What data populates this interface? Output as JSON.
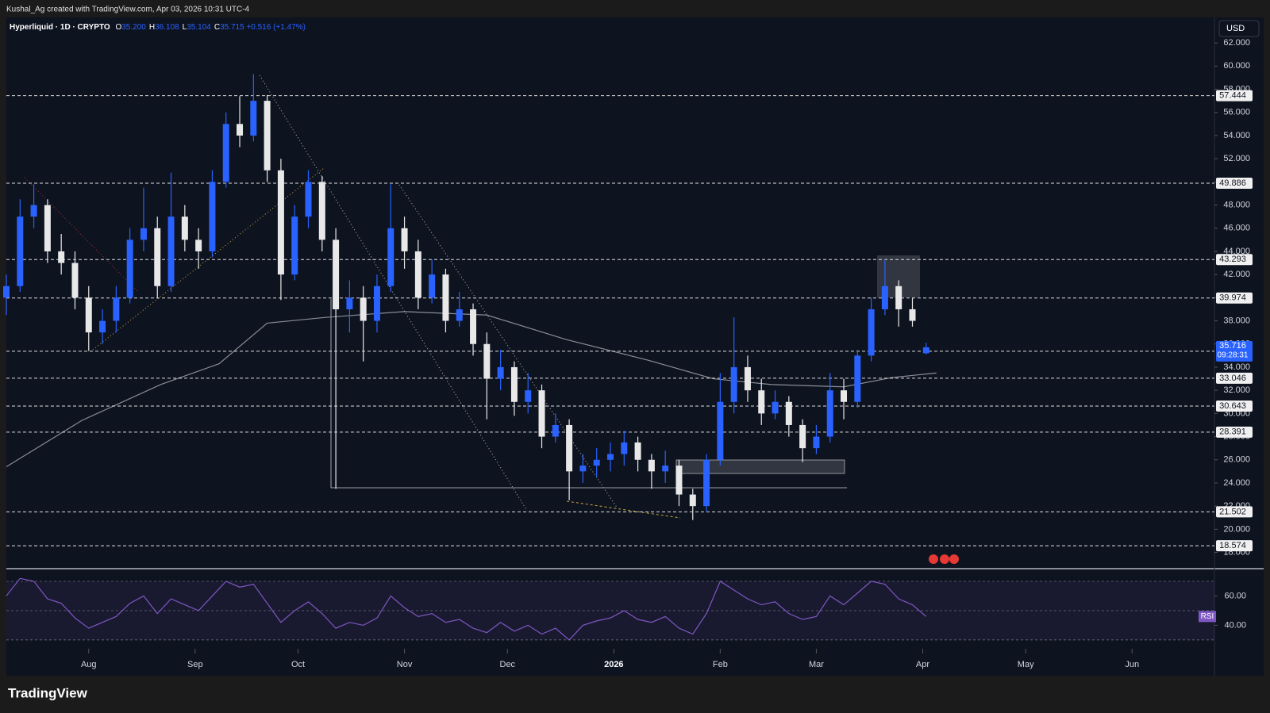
{
  "header": {
    "attribution": "Kushal_Ag created with TradingView.com, Apr 03, 2026 10:31 UTC-4",
    "brand": "TradingView",
    "currency": "USD"
  },
  "chart_data": [
    {
      "type": "candlestick",
      "title": "Hyperliquid · 1D · CRYPTO",
      "legend_ohlc": [
        {
          "key": "O",
          "value": "35.200"
        },
        {
          "key": "H",
          "value": "36.108"
        },
        {
          "key": "L",
          "value": "35.104"
        },
        {
          "key": "C",
          "value": "35.715"
        }
      ],
      "change": "+0.516 (+1.47%)",
      "x": [
        -24,
        -20,
        -16,
        -12,
        -8,
        -4,
        0,
        4,
        8,
        12,
        16,
        20,
        24,
        28,
        32,
        36,
        40,
        44,
        48,
        52,
        56,
        60,
        64,
        68,
        72,
        76,
        80,
        84,
        88,
        92,
        96,
        100,
        104,
        108,
        112,
        116,
        120,
        124,
        128,
        132,
        136,
        140,
        144,
        148,
        152,
        156,
        160,
        164,
        168,
        172,
        176,
        180,
        184,
        188,
        192,
        196,
        200,
        204,
        208,
        212,
        216,
        220,
        224,
        228,
        232,
        236,
        240,
        244
      ],
      "ohlc": [
        [
          40,
          42,
          38.5,
          41
        ],
        [
          41,
          48.5,
          40.5,
          47
        ],
        [
          47,
          49.8,
          46,
          48
        ],
        [
          48,
          48.5,
          43,
          44
        ],
        [
          44,
          45.5,
          42,
          43
        ],
        [
          43,
          44,
          39,
          40
        ],
        [
          40,
          41,
          35.4,
          37
        ],
        [
          37,
          39,
          36,
          38
        ],
        [
          38,
          41,
          37,
          40
        ],
        [
          40,
          46,
          39.5,
          45
        ],
        [
          45,
          49.5,
          44,
          46
        ],
        [
          46,
          47,
          40,
          41
        ],
        [
          41,
          50.8,
          40.5,
          47
        ],
        [
          47,
          48,
          44,
          45
        ],
        [
          45,
          46,
          42.5,
          44
        ],
        [
          44,
          51,
          43.5,
          50
        ],
        [
          50,
          56,
          49.5,
          55
        ],
        [
          55,
          57.4,
          53,
          54
        ],
        [
          54,
          59.3,
          53.5,
          57
        ],
        [
          57,
          57.5,
          50,
          51
        ],
        [
          51,
          52,
          39.8,
          42
        ],
        [
          42,
          48,
          41.5,
          47
        ],
        [
          47,
          51,
          46,
          50
        ],
        [
          50,
          50.5,
          44,
          45
        ],
        [
          45,
          46,
          23.5,
          39
        ],
        [
          39,
          41.5,
          37,
          40
        ],
        [
          40,
          41,
          34.5,
          38
        ],
        [
          38,
          42,
          37,
          41
        ],
        [
          41,
          49.8,
          40.5,
          46
        ],
        [
          46,
          47,
          42.5,
          44
        ],
        [
          44,
          45,
          39,
          40
        ],
        [
          40,
          43.3,
          39.5,
          42
        ],
        [
          42,
          42.5,
          37,
          38
        ],
        [
          38,
          40.5,
          37.5,
          39
        ],
        [
          39,
          39.5,
          35,
          36
        ],
        [
          36,
          37,
          29.5,
          33
        ],
        [
          33,
          35.5,
          32,
          34
        ],
        [
          34,
          34.5,
          29.8,
          31
        ],
        [
          31,
          33.5,
          30,
          32
        ],
        [
          32,
          32.5,
          27,
          28
        ],
        [
          28,
          30,
          27.5,
          29
        ],
        [
          29,
          29.5,
          22.5,
          25
        ],
        [
          25,
          26.5,
          24,
          25.5
        ],
        [
          25.5,
          27,
          24.5,
          26
        ],
        [
          26,
          27.5,
          25,
          26.5
        ],
        [
          26.5,
          28.5,
          25.5,
          27.5
        ],
        [
          27.5,
          28,
          25,
          26
        ],
        [
          26,
          26.5,
          23.5,
          25
        ],
        [
          25,
          26.8,
          24,
          25.5
        ],
        [
          25.5,
          26,
          22,
          23
        ],
        [
          23,
          23.5,
          20.8,
          22
        ],
        [
          22,
          26.5,
          21.5,
          26
        ],
        [
          26,
          33.5,
          25.5,
          31
        ],
        [
          31,
          38.3,
          30,
          34
        ],
        [
          34,
          35,
          31,
          32
        ],
        [
          32,
          33,
          29,
          30
        ],
        [
          30,
          32,
          29.5,
          31
        ],
        [
          31,
          31.5,
          28,
          29
        ],
        [
          29,
          29.5,
          25.8,
          27
        ],
        [
          27,
          29,
          26.5,
          28
        ],
        [
          28,
          33.5,
          27.5,
          32
        ],
        [
          32,
          33,
          29.5,
          31
        ],
        [
          31,
          35.5,
          30.5,
          35
        ],
        [
          35,
          40,
          34.5,
          39
        ],
        [
          39,
          43.3,
          38.5,
          41
        ],
        [
          41,
          41.5,
          37.5,
          39
        ],
        [
          39,
          40,
          37.5,
          38
        ],
        [
          35.2,
          36.108,
          35.104,
          35.715
        ]
      ],
      "up_color": "#2962ff",
      "down_color": "#e8e8e8",
      "ma": {
        "x": [
          -24,
          -2,
          21,
          38,
          52,
          69,
          92,
          116,
          139,
          163,
          182,
          199,
          220,
          234,
          247
        ],
        "values": [
          25.4,
          29.4,
          32.5,
          34.3,
          37.8,
          38.3,
          38.8,
          38.5,
          36.4,
          34.6,
          33.0,
          32.5,
          32.3,
          33.1,
          33.5
        ],
        "color": "#8a8d96"
      },
      "levels": [
        57.444,
        49.886,
        43.293,
        39.974,
        35.376,
        33.046,
        30.643,
        28.391,
        21.502,
        18.574
      ],
      "last_price": {
        "value": 35.716,
        "countdown": "09:28:31"
      },
      "xlim": [
        -24,
        328
      ],
      "xticks": [
        {
          "value": 0,
          "label": "Aug"
        },
        {
          "value": 31,
          "label": "Sep"
        },
        {
          "value": 61,
          "label": "Oct"
        },
        {
          "value": 92,
          "label": "Nov"
        },
        {
          "value": 122,
          "label": "Dec"
        },
        {
          "value": 153,
          "label": "2026"
        },
        {
          "value": 184,
          "label": "Feb"
        },
        {
          "value": 212,
          "label": "Mar"
        },
        {
          "value": 243,
          "label": "Apr"
        },
        {
          "value": 273,
          "label": "May"
        },
        {
          "value": 304,
          "label": "Jun"
        }
      ],
      "ylim": [
        16.6,
        64.2
      ],
      "yticks": [
        {
          "value": 18,
          "label": "18.000"
        },
        {
          "value": 20,
          "label": "20.000"
        },
        {
          "value": 22,
          "label": "22.000"
        },
        {
          "value": 24,
          "label": "24.000"
        },
        {
          "value": 26,
          "label": "26.000"
        },
        {
          "value": 28,
          "label": "28.000"
        },
        {
          "value": 30,
          "label": "30.000"
        },
        {
          "value": 32,
          "label": "32.000"
        },
        {
          "value": 34,
          "label": "34.000"
        },
        {
          "value": 36,
          "label": "36.000"
        },
        {
          "value": 38,
          "label": "38.000"
        },
        {
          "value": 40,
          "label": "40.000"
        },
        {
          "value": 42,
          "label": "42.000"
        },
        {
          "value": 44,
          "label": "44.000"
        },
        {
          "value": 46,
          "label": "46.000"
        },
        {
          "value": 48,
          "label": "48.000"
        },
        {
          "value": 50,
          "label": "50.000"
        },
        {
          "value": 52,
          "label": "52.000"
        },
        {
          "value": 54,
          "label": "54.000"
        },
        {
          "value": 56,
          "label": "56.000"
        },
        {
          "value": 58,
          "label": "58.000"
        },
        {
          "value": 60,
          "label": "60.000"
        },
        {
          "value": 62,
          "label": "62.000"
        }
      ]
    },
    {
      "type": "line",
      "name": "RSI",
      "color": "#7e57c2",
      "x": [
        -24,
        -20,
        -16,
        -12,
        -8,
        -4,
        0,
        4,
        8,
        12,
        16,
        20,
        24,
        28,
        32,
        36,
        40,
        44,
        48,
        52,
        56,
        60,
        64,
        68,
        72,
        76,
        80,
        84,
        88,
        92,
        96,
        100,
        104,
        108,
        112,
        116,
        120,
        124,
        128,
        132,
        136,
        140,
        144,
        148,
        152,
        156,
        160,
        164,
        168,
        172,
        176,
        180,
        184,
        188,
        192,
        196,
        200,
        204,
        208,
        212,
        216,
        220,
        224,
        228,
        232,
        236,
        240,
        244
      ],
      "values": [
        60,
        72,
        70,
        58,
        55,
        45,
        38,
        42,
        46,
        55,
        60,
        48,
        58,
        54,
        50,
        60,
        70,
        66,
        68,
        55,
        42,
        50,
        56,
        48,
        38,
        42,
        40,
        45,
        60,
        52,
        46,
        48,
        42,
        44,
        38,
        35,
        42,
        36,
        40,
        34,
        38,
        30,
        40,
        43,
        45,
        50,
        44,
        42,
        46,
        38,
        34,
        48,
        70,
        64,
        58,
        54,
        56,
        48,
        44,
        46,
        60,
        54,
        62,
        70,
        68,
        58,
        54,
        46
      ],
      "bands": [
        70,
        50,
        30
      ],
      "ylim": [
        24,
        77
      ],
      "yticks": [
        {
          "value": 40,
          "label": "40.00"
        },
        {
          "value": 60,
          "label": "60.00"
        }
      ]
    }
  ]
}
